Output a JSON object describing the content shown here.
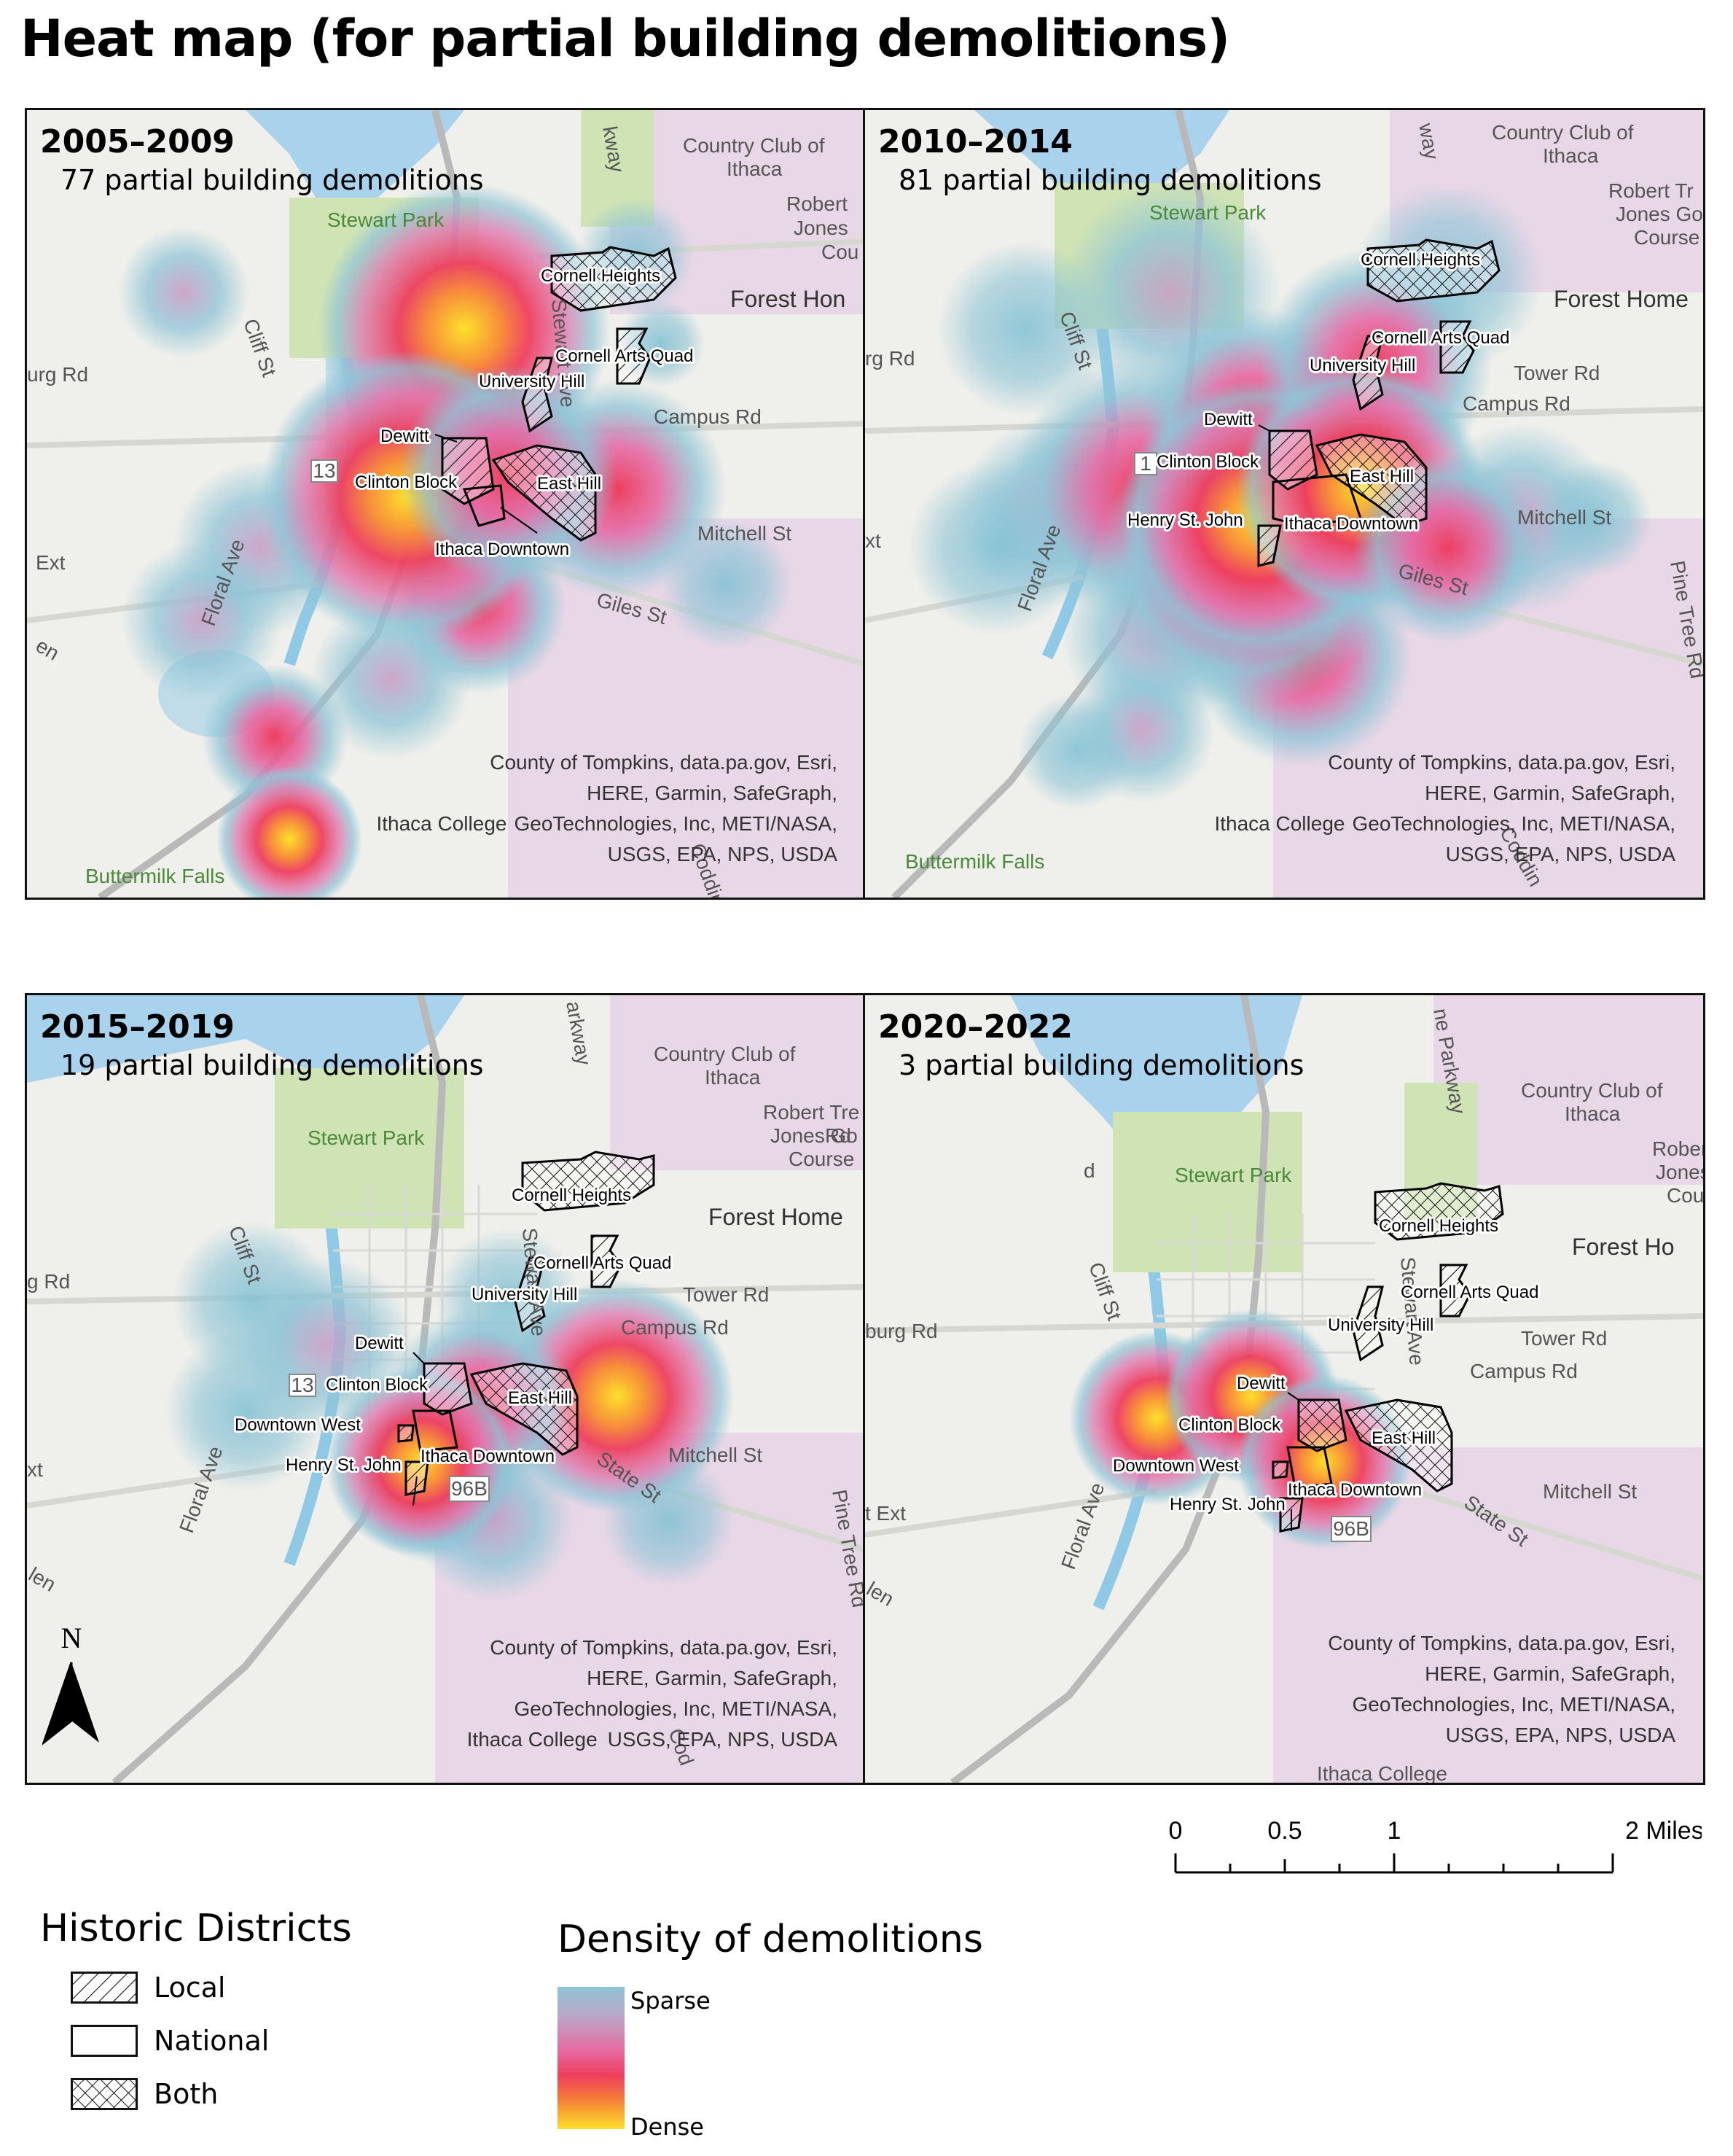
{
  "title": "Heat map (for partial building demolitions)",
  "attribution": [
    "County of Tompkins, data.pa.gov, Esri,",
    "HERE, Garmin, SafeGraph,",
    "GeoTechnologies, Inc, METI/NASA,",
    "USGS, EPA, NPS, USDA"
  ],
  "colors": {
    "sparse": "#8fc4d6",
    "mid": "#e66aa0",
    "high": "#ee3f5f",
    "dense": "#fde02a",
    "water": "#a9d3ec",
    "park": "#cfe3b4",
    "campus": "#e8d7e6"
  },
  "panels": [
    {
      "period": "2005–2009",
      "count_text": "77 partial building demolitions",
      "districts": [
        "Cornell Heights",
        "Cornell Arts Quad",
        "University Hill",
        "Dewitt",
        "Clinton Block",
        "East Hill",
        "Ithaca Downtown"
      ],
      "places": [
        "Stewart Park",
        "Country Club of",
        "Ithaca",
        "Robert",
        "Jones",
        "Cou",
        "Forest Hon",
        "urg Rd",
        "Cliff St",
        "Campus Rd",
        "Mitchell St",
        "Ext",
        "Floral Ave",
        "Giles St",
        "13",
        "Buttermilk Falls",
        "Ithaca College",
        "kway",
        "Stewart Ave",
        "en",
        "Coddin"
      ]
    },
    {
      "period": "2010–2014",
      "count_text": "81 partial building demolitions",
      "districts": [
        "Cornell Heights",
        "Cornell Arts Quad",
        "University Hill",
        "Dewitt",
        "Clinton Block",
        "East Hill",
        "Henry St. John",
        "Ithaca Downtown"
      ],
      "places": [
        "Stewart Park",
        "Country Club of",
        "Ithaca",
        "Robert Tr",
        "Jones Go",
        "Course",
        "Forest Home",
        "rg Rd",
        "Cliff St",
        "Tower Rd",
        "Campus Rd",
        "Mitchell St",
        "Pine Tree Rd",
        "Floral Ave",
        "Giles St",
        "xt",
        "1",
        "Buttermilk Falls",
        "Ithaca College",
        "way",
        "Coddin"
      ]
    },
    {
      "period": "2015–2019",
      "count_text": "19 partial building demolitions",
      "districts": [
        "Cornell Heights",
        "Cornell Arts Quad",
        "University Hill",
        "Dewitt",
        "Clinton Block",
        "East Hill",
        "Downtown West",
        "Henry St. John",
        "Ithaca Downtown"
      ],
      "places": [
        "Stewart Park",
        "Country Club of",
        "Ithaca",
        "Robert Tre",
        "Jones Go",
        "Rd",
        "Course",
        "Forest Home",
        "g Rd",
        "Cliff St",
        "Tower Rd",
        "Campus Rd",
        "Mitchell St",
        "Pine Tree Rd",
        "Floral Ave",
        "State St",
        "xt",
        "13",
        "96B",
        "Ithaca College",
        "arkway",
        "Stewart Ave",
        "len",
        "Cod"
      ]
    },
    {
      "period": "2020–2022",
      "count_text": "3 partial building demolitions",
      "districts": [
        "Cornell Heights",
        "Cornell Arts Quad",
        "University Hill",
        "Dewitt",
        "Clinton Block",
        "East Hill",
        "Downtown West",
        "Henry St. John",
        "Ithaca Downtown"
      ],
      "places": [
        "Stewart Park",
        "Country Club of",
        "Ithaca",
        "Rober",
        "Jones",
        "Cou",
        "Forest Ho",
        "burg Rd",
        "Cliff St",
        "Tower Rd",
        "Campus Rd",
        "Mitchell St",
        "Floral Ave",
        "State St",
        "t Ext",
        "96B",
        "Ithaca College",
        "ne Parkway",
        "Stewart Ave",
        "len",
        "d"
      ]
    }
  ],
  "scale": {
    "ticks": [
      "0",
      "0.5",
      "1",
      "2 Miles"
    ]
  },
  "north": "N",
  "legend_districts": {
    "title": "Historic Districts",
    "items": [
      "Local",
      "National",
      "Both"
    ]
  },
  "legend_density": {
    "title": "Density of demolitions",
    "low": "Sparse",
    "high": "Dense"
  }
}
